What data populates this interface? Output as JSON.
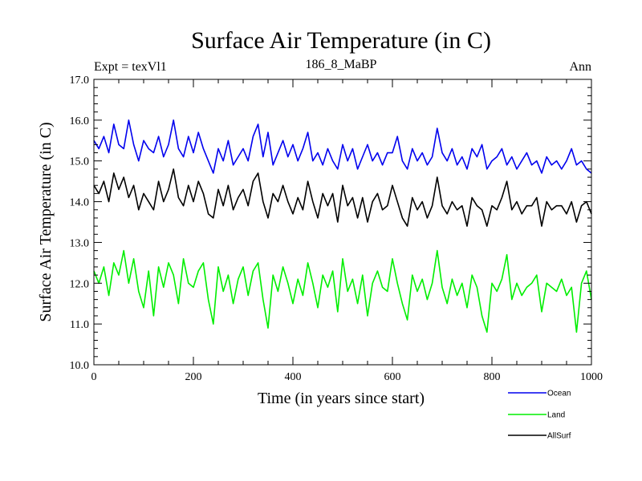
{
  "chart_data": {
    "type": "line",
    "title": "Surface Air Temperature (in C)",
    "subtitle_left": "Expt = texVl1",
    "subtitle_center": "186_8_MaBP",
    "subtitle_right": "Ann",
    "xlabel": "Time (in years since start)",
    "ylabel": "Surface Air Temperature (in C)",
    "xlim": [
      0,
      1000
    ],
    "ylim": [
      10.0,
      17.0
    ],
    "x_major_ticks": [
      0,
      200,
      400,
      600,
      800,
      1000
    ],
    "x_tick_labels": [
      "0",
      "200",
      "400",
      "600",
      "800",
      "1000"
    ],
    "y_major_ticks": [
      10.0,
      11.0,
      12.0,
      13.0,
      14.0,
      15.0,
      16.0,
      17.0
    ],
    "y_tick_labels": [
      "10.0",
      "11.0",
      "12.0",
      "13.0",
      "14.0",
      "15.0",
      "16.0",
      "17.0"
    ],
    "legend_placement": "bottom-right, outside plot",
    "series": [
      {
        "name": "Ocean",
        "color": "#0000ee",
        "x": [
          0,
          10,
          20,
          30,
          40,
          50,
          60,
          70,
          80,
          90,
          100,
          110,
          120,
          130,
          140,
          150,
          160,
          170,
          180,
          190,
          200,
          210,
          220,
          230,
          240,
          250,
          260,
          270,
          280,
          290,
          300,
          310,
          320,
          330,
          340,
          350,
          360,
          370,
          380,
          390,
          400,
          410,
          420,
          430,
          440,
          450,
          460,
          470,
          480,
          490,
          500,
          510,
          520,
          530,
          540,
          550,
          560,
          570,
          580,
          590,
          600,
          610,
          620,
          630,
          640,
          650,
          660,
          670,
          680,
          690,
          700,
          710,
          720,
          730,
          740,
          750,
          760,
          770,
          780,
          790,
          800,
          810,
          820,
          830,
          840,
          850,
          860,
          870,
          880,
          890,
          900,
          910,
          920,
          930,
          940,
          950,
          960,
          970,
          980,
          990,
          1000
        ],
        "values": [
          15.5,
          15.3,
          15.6,
          15.2,
          15.9,
          15.4,
          15.3,
          16.0,
          15.4,
          15.0,
          15.5,
          15.3,
          15.2,
          15.6,
          15.1,
          15.4,
          16.0,
          15.3,
          15.1,
          15.6,
          15.2,
          15.7,
          15.3,
          15.0,
          14.7,
          15.3,
          15.0,
          15.5,
          14.9,
          15.1,
          15.3,
          15.0,
          15.6,
          15.9,
          15.1,
          15.7,
          14.9,
          15.2,
          15.5,
          15.1,
          15.4,
          15.0,
          15.3,
          15.7,
          15.0,
          15.2,
          14.9,
          15.3,
          15.0,
          14.8,
          15.4,
          15.0,
          15.3,
          14.8,
          15.1,
          15.4,
          15.0,
          15.2,
          14.9,
          15.2,
          15.2,
          15.6,
          15.0,
          14.8,
          15.3,
          15.0,
          15.2,
          14.9,
          15.1,
          15.8,
          15.2,
          15.0,
          15.3,
          14.9,
          15.1,
          14.8,
          15.3,
          15.1,
          15.4,
          14.8,
          15.0,
          15.1,
          15.3,
          14.9,
          15.1,
          14.8,
          15.0,
          15.2,
          14.9,
          15.0,
          14.7,
          15.1,
          14.9,
          15.0,
          14.8,
          15.0,
          15.3,
          14.9,
          15.0,
          14.8,
          14.7
        ]
      },
      {
        "name": "Land",
        "color": "#00ee00",
        "x": [
          0,
          10,
          20,
          30,
          40,
          50,
          60,
          70,
          80,
          90,
          100,
          110,
          120,
          130,
          140,
          150,
          160,
          170,
          180,
          190,
          200,
          210,
          220,
          230,
          240,
          250,
          260,
          270,
          280,
          290,
          300,
          310,
          320,
          330,
          340,
          350,
          360,
          370,
          380,
          390,
          400,
          410,
          420,
          430,
          440,
          450,
          460,
          470,
          480,
          490,
          500,
          510,
          520,
          530,
          540,
          550,
          560,
          570,
          580,
          590,
          600,
          610,
          620,
          630,
          640,
          650,
          660,
          670,
          680,
          690,
          700,
          710,
          720,
          730,
          740,
          750,
          760,
          770,
          780,
          790,
          800,
          810,
          820,
          830,
          840,
          850,
          860,
          870,
          880,
          890,
          900,
          910,
          920,
          930,
          940,
          950,
          960,
          970,
          980,
          990,
          1000
        ],
        "values": [
          12.3,
          12.0,
          12.4,
          11.7,
          12.5,
          12.2,
          12.8,
          12.0,
          12.6,
          11.8,
          11.4,
          12.3,
          11.2,
          12.4,
          11.9,
          12.5,
          12.2,
          11.5,
          12.6,
          12.0,
          11.9,
          12.3,
          12.5,
          11.6,
          11.0,
          12.4,
          11.8,
          12.2,
          11.5,
          12.1,
          12.4,
          11.7,
          12.3,
          12.5,
          11.6,
          10.9,
          12.2,
          11.8,
          12.4,
          12.0,
          11.5,
          12.1,
          11.7,
          12.5,
          12.0,
          11.4,
          12.2,
          11.9,
          12.3,
          11.3,
          12.6,
          11.8,
          12.1,
          11.5,
          12.2,
          11.2,
          12.0,
          12.3,
          11.9,
          11.8,
          12.6,
          12.0,
          11.5,
          11.1,
          12.2,
          11.8,
          12.1,
          11.6,
          12.0,
          12.8,
          11.9,
          11.5,
          12.1,
          11.7,
          12.0,
          11.4,
          12.2,
          11.9,
          11.2,
          10.8,
          12.0,
          11.8,
          12.1,
          12.7,
          11.6,
          12.0,
          11.7,
          11.9,
          12.0,
          12.2,
          11.3,
          12.0,
          11.9,
          11.8,
          12.1,
          11.7,
          11.9,
          10.8,
          12.0,
          12.3,
          11.6
        ]
      },
      {
        "name": "AllSurf",
        "color": "#000000",
        "x": [
          0,
          10,
          20,
          30,
          40,
          50,
          60,
          70,
          80,
          90,
          100,
          110,
          120,
          130,
          140,
          150,
          160,
          170,
          180,
          190,
          200,
          210,
          220,
          230,
          240,
          250,
          260,
          270,
          280,
          290,
          300,
          310,
          320,
          330,
          340,
          350,
          360,
          370,
          380,
          390,
          400,
          410,
          420,
          430,
          440,
          450,
          460,
          470,
          480,
          490,
          500,
          510,
          520,
          530,
          540,
          550,
          560,
          570,
          580,
          590,
          600,
          610,
          620,
          630,
          640,
          650,
          660,
          670,
          680,
          690,
          700,
          710,
          720,
          730,
          740,
          750,
          760,
          770,
          780,
          790,
          800,
          810,
          820,
          830,
          840,
          850,
          860,
          870,
          880,
          890,
          900,
          910,
          920,
          930,
          940,
          950,
          960,
          970,
          980,
          990,
          1000
        ],
        "values": [
          14.4,
          14.2,
          14.5,
          14.0,
          14.7,
          14.3,
          14.6,
          14.1,
          14.4,
          13.8,
          14.2,
          14.0,
          13.8,
          14.5,
          14.0,
          14.3,
          14.8,
          14.1,
          13.9,
          14.4,
          14.0,
          14.5,
          14.2,
          13.7,
          13.6,
          14.3,
          13.9,
          14.4,
          13.8,
          14.1,
          14.3,
          13.9,
          14.5,
          14.7,
          14.0,
          13.6,
          14.2,
          14.0,
          14.4,
          14.0,
          13.7,
          14.1,
          13.8,
          14.5,
          14.0,
          13.6,
          14.2,
          13.9,
          14.2,
          13.5,
          14.4,
          13.9,
          14.1,
          13.6,
          14.1,
          13.5,
          14.0,
          14.2,
          13.8,
          13.9,
          14.4,
          14.0,
          13.6,
          13.4,
          14.1,
          13.8,
          14.0,
          13.6,
          13.9,
          14.6,
          13.9,
          13.7,
          14.0,
          13.8,
          13.9,
          13.4,
          14.1,
          13.9,
          13.8,
          13.4,
          13.9,
          13.8,
          14.1,
          14.5,
          13.8,
          14.0,
          13.7,
          13.9,
          13.9,
          14.1,
          13.4,
          14.0,
          13.8,
          13.9,
          13.9,
          13.7,
          14.0,
          13.5,
          13.9,
          14.0,
          13.7
        ]
      }
    ]
  }
}
